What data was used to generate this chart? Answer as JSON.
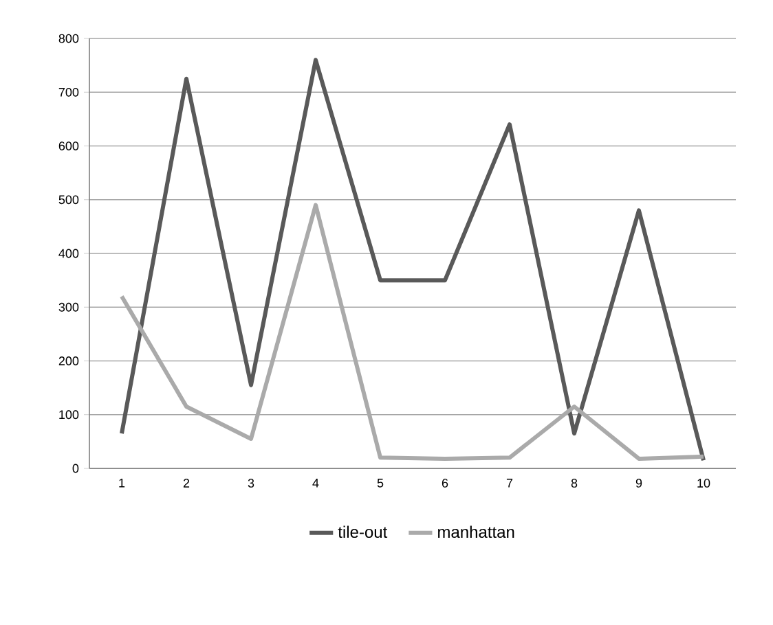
{
  "chart_data": {
    "type": "line",
    "categories": [
      "1",
      "2",
      "3",
      "4",
      "5",
      "6",
      "7",
      "8",
      "9",
      "10"
    ],
    "series": [
      {
        "name": "tile-out",
        "color": "#595959",
        "values": [
          65,
          725,
          155,
          760,
          350,
          350,
          640,
          65,
          480,
          15
        ]
      },
      {
        "name": "manhattan",
        "color": "#aaaaaa",
        "values": [
          320,
          115,
          55,
          490,
          20,
          18,
          20,
          115,
          18,
          22
        ]
      }
    ],
    "ylim": [
      0,
      800
    ],
    "yticks": [
      0,
      100,
      200,
      300,
      400,
      500,
      600,
      700,
      800
    ],
    "grid": "y",
    "legend": "bottom",
    "marker": "none",
    "line_style": "solid"
  }
}
